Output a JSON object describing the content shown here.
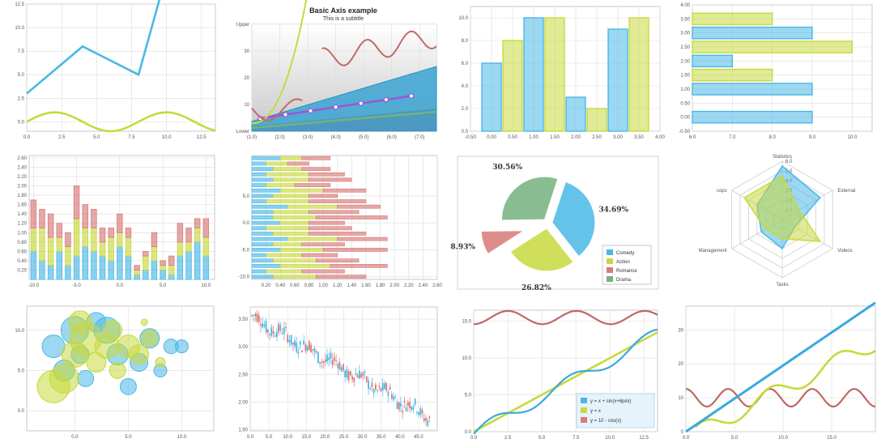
{
  "colors": {
    "blue": "#4ab8e6",
    "yellow": "#c8d93c",
    "red": "#d77a78",
    "green": "#74b27d",
    "purple": "#9c55d6",
    "grid": "#dcdcdc"
  },
  "chart_data": [
    {
      "type": "line",
      "ylim": [
        -1,
        12.5
      ],
      "xlim": [
        0,
        13.5
      ],
      "xticks": [
        "0.0",
        "2.5",
        "5.0",
        "7.5",
        "10.0",
        "12.5"
      ],
      "yticks": [
        "0.0",
        "2.5",
        "5.0",
        "7.5",
        "10.0",
        "12.5"
      ],
      "series": [
        {
          "x": [
            0,
            4,
            8,
            9.5
          ],
          "y": [
            3,
            8,
            5,
            13
          ]
        },
        {
          "x": [
            0,
            2,
            4,
            6,
            8,
            10,
            12,
            13.5
          ],
          "y": [
            0,
            1,
            0,
            -1,
            0,
            1,
            0,
            -0.6
          ],
          "smooth": true
        }
      ]
    },
    {
      "type": "area",
      "title": "Basic Axis example",
      "subtitle": "This is a subtitle",
      "ylim": [
        0,
        40
      ],
      "xlim": [
        1,
        7.6
      ],
      "xticks": [
        "(1.0)",
        "(2.0)",
        "(3.0)",
        "(4.0)",
        "(5.0)",
        "(6.0)",
        "(7.0)"
      ],
      "yticks": [
        "Lower",
        "10",
        "20",
        "30",
        "Upper"
      ],
      "markers": {
        "x": [
          1.3,
          2.2,
          3.1,
          4.0,
          4.9,
          5.8,
          6.7
        ],
        "y": [
          4.8,
          6.2,
          7.6,
          9.0,
          10.4,
          11.8,
          13.2
        ]
      }
    },
    {
      "type": "bar",
      "xlim": [
        -0.5,
        4
      ],
      "ylim": [
        0,
        11
      ],
      "xticks": [
        "-0.50",
        "0.00",
        "0.50",
        "1.00",
        "1.50",
        "2.00",
        "2.50",
        "3.00",
        "3.50",
        "4.00"
      ],
      "yticks": [
        "0.0",
        "2.0",
        "4.0",
        "6.0",
        "8.0",
        "10.0"
      ],
      "series": [
        {
          "x": [
            0,
            1,
            2,
            3
          ],
          "values": [
            6,
            10,
            3,
            9
          ]
        },
        {
          "x": [
            0.5,
            1.5,
            2.5,
            3.5
          ],
          "values": [
            8,
            10,
            2,
            10
          ]
        }
      ]
    },
    {
      "type": "bar-horizontal",
      "xlim": [
        6,
        10.5
      ],
      "ylim": [
        -0.5,
        4
      ],
      "xticks": [
        "6.0",
        "7.0",
        "8.0",
        "9.0",
        "10.0"
      ],
      "yticks": [
        "-0.50",
        "0.00",
        "0.50",
        "1.00",
        "1.50",
        "2.00",
        "2.50",
        "3.00",
        "3.50",
        "4.00"
      ],
      "series": [
        {
          "y": [
            0,
            1,
            2,
            3
          ],
          "values": [
            9,
            9,
            7,
            9
          ]
        },
        {
          "y": [
            0.5,
            1.5,
            2.5,
            3.5
          ],
          "values": [
            null,
            8,
            10,
            8
          ]
        }
      ]
    },
    {
      "type": "stacked-bar",
      "xlim": [
        -10.5,
        11
      ],
      "ylim": [
        0,
        2.65
      ],
      "xticks": [
        "-10.0",
        "-5.0",
        "0.0",
        "5.0",
        "10.0"
      ],
      "yticks": [
        "0.20",
        "0.40",
        "0.60",
        "0.80",
        "1.00",
        "1.20",
        "1.40",
        "1.60",
        "1.80",
        "2.00",
        "2.20",
        "2.40",
        "2.60"
      ],
      "x": [
        -10,
        -9,
        -8,
        -7,
        -6,
        -5,
        -4,
        -3,
        -2,
        -1,
        0,
        1,
        2,
        3,
        4,
        5,
        6,
        7,
        8,
        9,
        10
      ],
      "series": [
        {
          "values": [
            0.6,
            0.4,
            0.3,
            0.6,
            0.3,
            0.5,
            0.7,
            0.6,
            0.5,
            0.4,
            0.7,
            0.5,
            0.1,
            0.2,
            0.4,
            0.2,
            0.1,
            0.5,
            0.6,
            0.8,
            0.5
          ]
        },
        {
          "values": [
            0.5,
            0.7,
            0.6,
            0.3,
            0.4,
            0.8,
            0.4,
            0.5,
            0.3,
            0.5,
            0.3,
            0.4,
            0.1,
            0.3,
            0.3,
            0.1,
            0.2,
            0.3,
            0.2,
            0.3,
            0.4
          ]
        },
        {
          "values": [
            0.6,
            0.4,
            0.5,
            0.3,
            0.3,
            0.7,
            0.5,
            0.4,
            0.3,
            0.2,
            0.4,
            0.2,
            0.1,
            0.1,
            0.3,
            0.1,
            0.2,
            0.4,
            0.3,
            0.2,
            0.4
          ]
        }
      ]
    },
    {
      "type": "stacked-bar-horizontal",
      "xlim": [
        0,
        2.6
      ],
      "ylim": [
        -10.5,
        12.5
      ],
      "xticks": [
        "0.20",
        "0.40",
        "0.60",
        "0.80",
        "1.00",
        "1.20",
        "1.40",
        "1.60",
        "1.80",
        "2.00",
        "2.20",
        "2.40",
        "2.60"
      ],
      "yticks": [
        "-10.0",
        "-5.0",
        "0.0",
        "5.0"
      ],
      "y": [
        -10,
        -9,
        -8,
        -7,
        -6,
        -5,
        -4,
        -3,
        -2,
        -1,
        0,
        1,
        2,
        3,
        4,
        5,
        6,
        7,
        8,
        9,
        10,
        11,
        12
      ],
      "series": [
        {
          "values": [
            0.3,
            0.2,
            0.4,
            0.3,
            0.2,
            0.4,
            0.3,
            0.5,
            0.3,
            0.2,
            0.4,
            0.3,
            0.3,
            0.5,
            0.2,
            0.3,
            0.4,
            0.2,
            0.3,
            0.2,
            0.3,
            0.2,
            0.4
          ]
        },
        {
          "values": [
            0.6,
            0.5,
            0.7,
            0.6,
            0.5,
            0.6,
            0.4,
            0.7,
            0.5,
            0.6,
            0.4,
            0.6,
            0.5,
            0.7,
            0.6,
            0.5,
            0.6,
            0.4,
            0.5,
            0.6,
            0.4,
            0.3,
            0.3
          ]
        },
        {
          "values": [
            0.7,
            0.6,
            0.8,
            0.6,
            0.5,
            0.9,
            0.6,
            0.7,
            0.8,
            0.6,
            0.5,
            1.0,
            0.7,
            0.6,
            0.8,
            0.4,
            0.6,
            0.5,
            0.6,
            0.5,
            0.4,
            0.3,
            0.4
          ]
        }
      ]
    },
    {
      "type": "pie",
      "slices": [
        {
          "label": "Comedy",
          "pct": "34.69%",
          "value": 34.69
        },
        {
          "label": "Action",
          "pct": "26.82%",
          "value": 26.82
        },
        {
          "label": "Romance",
          "pct": "8.93%",
          "value": 8.93
        },
        {
          "label": "Drama",
          "pct": "30.56%",
          "value": 30.56
        }
      ]
    },
    {
      "type": "radar",
      "axes": [
        "Statistics",
        "External",
        "Videos",
        "Tasks",
        "Management",
        "cops"
      ],
      "rticks": [
        "0.0",
        "1.0",
        "2.0",
        "3.0",
        "4.0",
        "5.0",
        "6.0"
      ],
      "rmax": 6,
      "series": [
        {
          "values": [
            5.5,
            4.5,
            1.5,
            3,
            2.5,
            3
          ]
        },
        {
          "values": [
            4.5,
            2,
            4.5,
            2,
            2,
            4.5
          ]
        }
      ]
    },
    {
      "type": "scatter",
      "xlim": [
        -4.5,
        13
      ],
      "ylim": [
        -2.5,
        13
      ],
      "xticks": [
        "0.0",
        "5.0",
        "10.0"
      ],
      "yticks": [
        "0.0",
        "5.0",
        "10.0"
      ],
      "series": [
        {
          "x": [
            -2,
            0,
            1,
            3,
            4,
            6,
            7,
            9,
            2,
            5,
            8,
            -1,
            0.5,
            10
          ],
          "y": [
            8,
            10,
            4,
            10,
            7,
            6,
            9,
            8,
            11,
            3,
            5,
            5,
            7,
            8
          ],
          "r": [
            14,
            17,
            10,
            16,
            13,
            11,
            12,
            9,
            12,
            10,
            8,
            13,
            11,
            8
          ]
        },
        {
          "x": [
            -1,
            0,
            1,
            2,
            3,
            4,
            5,
            6,
            7,
            -2,
            0.5,
            3.5,
            8,
            6.5
          ],
          "y": [
            4,
            7,
            9,
            6,
            8,
            5,
            8,
            7,
            9,
            3,
            11,
            10,
            6,
            11
          ],
          "r": [
            18,
            16,
            20,
            12,
            15,
            10,
            14,
            12,
            10,
            20,
            14,
            12,
            6,
            4
          ]
        }
      ]
    },
    {
      "type": "candlestick",
      "xlim": [
        0,
        50
      ],
      "ylim": [
        1.48,
        3.72
      ],
      "xticks": [
        "0.0",
        "5.0",
        "10.0",
        "15.0",
        "20.0",
        "25.0",
        "30.0",
        "35.0",
        "40.0",
        "45.0"
      ],
      "yticks": [
        "1.50",
        "2.00",
        "2.50",
        "3.00",
        "3.50"
      ]
    },
    {
      "type": "line",
      "xlim": [
        0,
        13.5
      ],
      "ylim": [
        0,
        16.5
      ],
      "xticks": [
        "0.0",
        "2.5",
        "5.0",
        "7.5",
        "10.0",
        "12.5"
      ],
      "yticks": [
        "0.0",
        "5.0",
        "10.0",
        "15.0"
      ],
      "legend": [
        "y = x + sin(x+6pi/x)",
        "y = x",
        "y = 10 - cos(x)"
      ],
      "legend_position": "bottom-right"
    },
    {
      "type": "line",
      "xlim": [
        0,
        19.5
      ],
      "ylim": [
        0,
        37
      ],
      "xticks": [
        "0.0",
        "5.0",
        "10.0",
        "15.0"
      ],
      "yticks": [
        "0",
        "10",
        "20",
        "30"
      ]
    }
  ]
}
